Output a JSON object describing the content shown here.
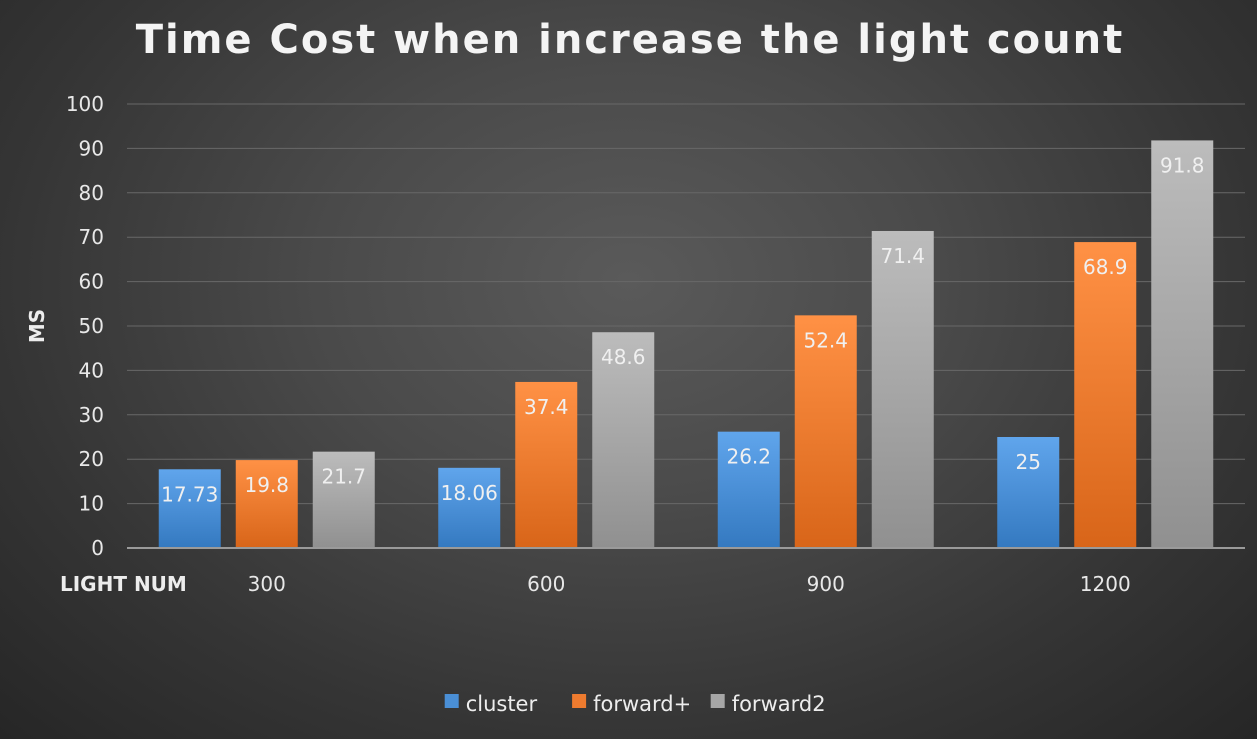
{
  "chart_data": {
    "type": "bar",
    "title": "Time Cost when increase the light count",
    "xlabel": "LIGHT NUM",
    "ylabel": "MS",
    "categories": [
      "300",
      "600",
      "900",
      "1200"
    ],
    "series": [
      {
        "name": "cluster",
        "values": [
          17.73,
          18.06,
          26.2,
          25
        ],
        "labels": [
          "17.73",
          "18.06",
          "26.2",
          "25"
        ],
        "color": "#4a8fd6"
      },
      {
        "name": "forward+",
        "values": [
          19.8,
          37.4,
          52.4,
          68.9
        ],
        "labels": [
          "19.8",
          "37.4",
          "52.4",
          "68.9"
        ],
        "color": "#ee7b2f"
      },
      {
        "name": "forward2",
        "values": [
          21.7,
          48.6,
          71.4,
          91.8
        ],
        "labels": [
          "21.7",
          "48.6",
          "71.4",
          "91.8"
        ],
        "color": "#a6a6a6"
      }
    ],
    "ylim": [
      0,
      100
    ],
    "yticks": [
      "0",
      "10",
      "20",
      "30",
      "40",
      "50",
      "60",
      "70",
      "80",
      "90",
      "100"
    ],
    "grid": true,
    "legend": "bottom",
    "colors": {
      "gridline": "#686868",
      "axis": "#9a9a9a"
    }
  }
}
